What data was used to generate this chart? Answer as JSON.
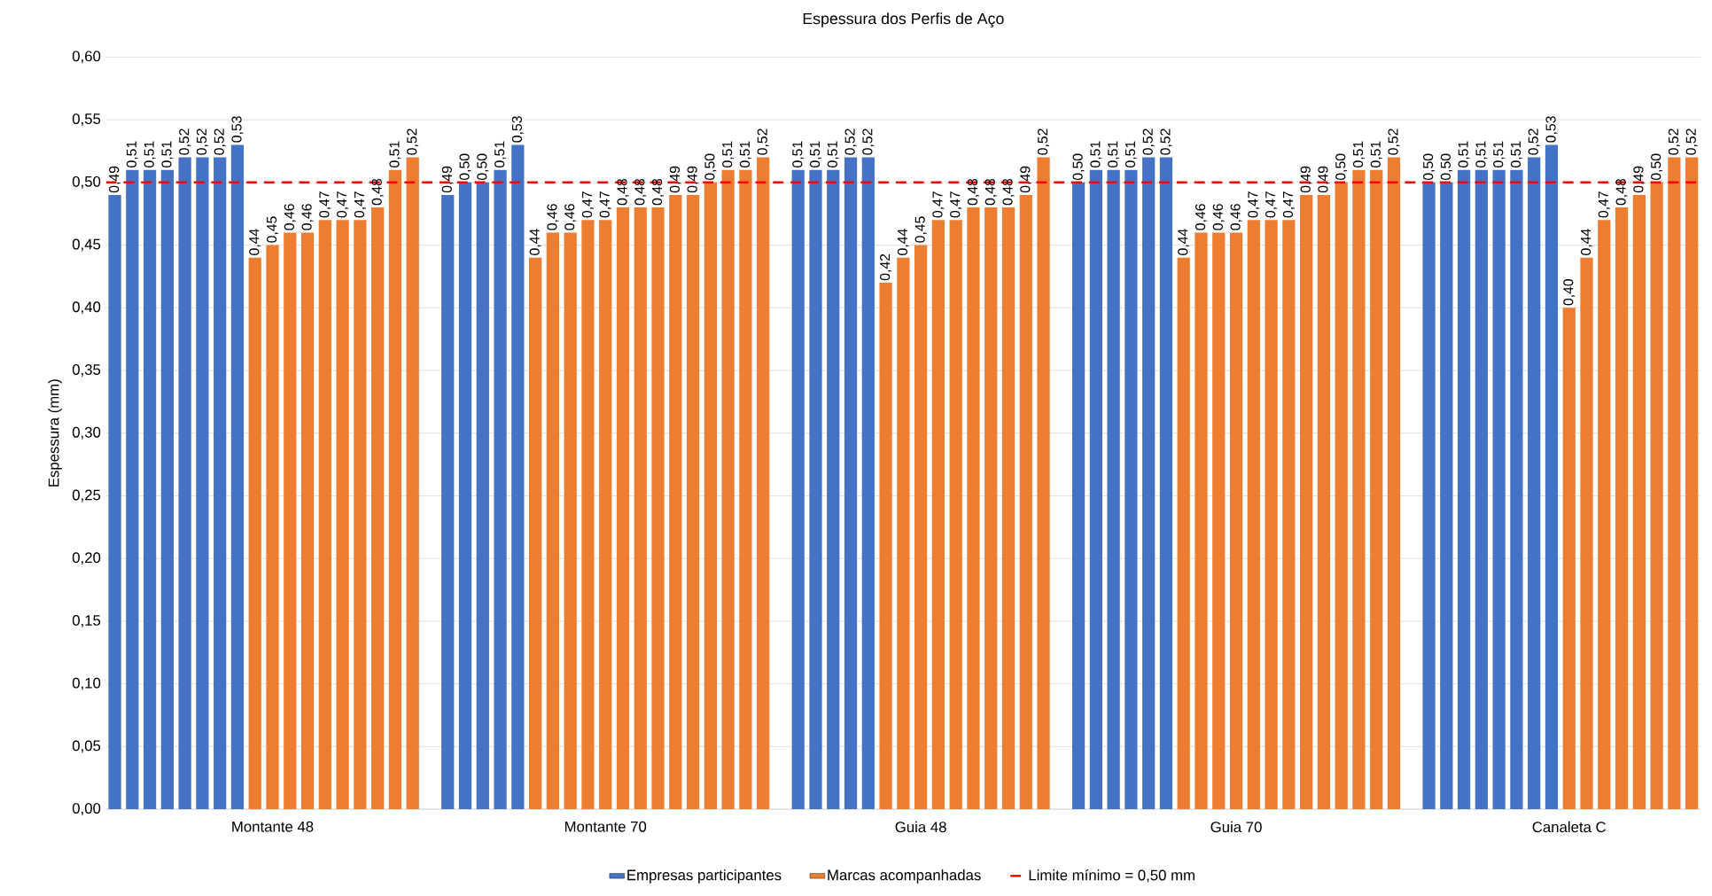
{
  "chart_data": {
    "type": "bar",
    "title": "Espessura dos Perfis de Aço",
    "ylabel": "Espessura (mm)",
    "categories": [
      null,
      null,
      null,
      null,
      null,
      null,
      null,
      null,
      null,
      "Montante 48",
      null,
      null,
      null,
      null,
      null,
      null,
      null,
      null,
      null,
      null,
      null,
      null,
      null,
      null,
      null,
      null,
      null,
      null,
      "Montante 70",
      null,
      null,
      null,
      null,
      null,
      null,
      null,
      null,
      null,
      null,
      null,
      null,
      null,
      null,
      null,
      null,
      null,
      "Guia 48",
      null,
      null,
      null,
      null,
      null,
      null,
      null,
      null,
      null,
      null,
      null,
      null,
      null,
      null,
      null,
      null,
      null,
      "Guia 70",
      null,
      null,
      null,
      null,
      null,
      null,
      null,
      null,
      null,
      null,
      null,
      null,
      null,
      null,
      null,
      null,
      null,
      null,
      "Canaleta C",
      null,
      null,
      null,
      null,
      null,
      null,
      null
    ],
    "series": [
      {
        "name": "Empresas participantes",
        "color": "#4472c4",
        "values": [
          0.49,
          0.51,
          0.51,
          0.51,
          0.52,
          0.52,
          0.52,
          0.53,
          null,
          null,
          null,
          null,
          null,
          null,
          null,
          null,
          null,
          null,
          null,
          0.49,
          0.5,
          0.5,
          0.51,
          0.53,
          null,
          null,
          null,
          null,
          null,
          null,
          null,
          null,
          null,
          null,
          null,
          null,
          null,
          null,
          null,
          0.51,
          0.51,
          0.51,
          0.52,
          0.52,
          null,
          null,
          null,
          null,
          null,
          null,
          null,
          null,
          null,
          null,
          null,
          0.5,
          0.51,
          0.51,
          0.51,
          0.52,
          0.52,
          null,
          null,
          null,
          null,
          null,
          null,
          null,
          null,
          null,
          null,
          null,
          null,
          null,
          null,
          0.5,
          0.5,
          0.51,
          0.51,
          0.51,
          0.51,
          0.52,
          0.53,
          null,
          null,
          null,
          null,
          null,
          null,
          null,
          null
        ],
        "value_labels": [
          "0,49",
          "0,51",
          "0,51",
          "0,51",
          "0,52",
          "0,52",
          "0,52",
          "0,53",
          null,
          null,
          null,
          null,
          null,
          null,
          null,
          null,
          null,
          null,
          null,
          "0,49",
          "0,50",
          "0,50",
          "0,51",
          "0,53",
          null,
          null,
          null,
          null,
          null,
          null,
          null,
          null,
          null,
          null,
          null,
          null,
          null,
          null,
          null,
          "0,51",
          "0,51",
          "0,51",
          "0,52",
          "0,52",
          null,
          null,
          null,
          null,
          null,
          null,
          null,
          null,
          null,
          null,
          null,
          "0,50",
          "0,51",
          "0,51",
          "0,51",
          "0,52",
          "0,52",
          null,
          null,
          null,
          null,
          null,
          null,
          null,
          null,
          null,
          null,
          null,
          null,
          null,
          null,
          "0,50",
          "0,50",
          "0,51",
          "0,51",
          "0,51",
          "0,51",
          "0,52",
          "0,53",
          null,
          null,
          null,
          null,
          null,
          null,
          null,
          null
        ]
      },
      {
        "name": "Marcas acompanhadas",
        "color": "#ed7d31",
        "values": [
          null,
          null,
          null,
          null,
          null,
          null,
          null,
          null,
          0.44,
          0.45,
          0.46,
          0.46,
          0.47,
          0.47,
          0.47,
          0.48,
          0.51,
          0.52,
          null,
          null,
          null,
          null,
          null,
          null,
          0.44,
          0.46,
          0.46,
          0.47,
          0.47,
          0.48,
          0.48,
          0.48,
          0.49,
          0.49,
          0.5,
          0.51,
          0.51,
          0.52,
          null,
          null,
          null,
          null,
          null,
          null,
          0.42,
          0.44,
          0.45,
          0.47,
          0.47,
          0.48,
          0.48,
          0.48,
          0.49,
          0.52,
          null,
          null,
          null,
          null,
          null,
          null,
          null,
          0.44,
          0.46,
          0.46,
          0.46,
          0.47,
          0.47,
          0.47,
          0.49,
          0.49,
          0.5,
          0.51,
          0.51,
          0.52,
          null,
          null,
          null,
          null,
          null,
          null,
          null,
          null,
          null,
          0.4,
          0.44,
          0.47,
          0.48,
          0.49,
          0.5,
          0.52,
          0.52
        ],
        "value_labels": [
          null,
          null,
          null,
          null,
          null,
          null,
          null,
          null,
          "0,44",
          "0,45",
          "0,46",
          "0,46",
          "0,47",
          "0,47",
          "0,47",
          "0,48",
          "0,51",
          "0,52",
          null,
          null,
          null,
          null,
          null,
          null,
          "0,44",
          "0,46",
          "0,46",
          "0,47",
          "0,47",
          "0,48",
          "0,48",
          "0,48",
          "0,49",
          "0,49",
          "0,50",
          "0,51",
          "0,51",
          "0,52",
          null,
          null,
          null,
          null,
          null,
          null,
          "0,42",
          "0,44",
          "0,45",
          "0,47",
          "0,47",
          "0,48",
          "0,48",
          "0,48",
          "0,49",
          "0,52",
          null,
          null,
          null,
          null,
          null,
          null,
          null,
          "0,44",
          "0,46",
          "0,46",
          "0,46",
          "0,47",
          "0,47",
          "0,47",
          "0,49",
          "0,49",
          "0,50",
          "0,51",
          "0,51",
          "0,52",
          null,
          null,
          null,
          null,
          null,
          null,
          null,
          null,
          null,
          "0,40",
          "0,44",
          "0,47",
          "0,48",
          "0,49",
          "0,50",
          "0,52",
          "0,52"
        ]
      }
    ],
    "ylim": [
      0,
      0.6
    ],
    "yticks": [
      {
        "value": 0,
        "label": "0,00"
      },
      {
        "value": 0.05,
        "label": "0,05"
      },
      {
        "value": 0.1,
        "label": "0,10"
      },
      {
        "value": 0.15,
        "label": "0,15"
      },
      {
        "value": 0.2,
        "label": "0,20"
      },
      {
        "value": 0.25,
        "label": "0,25"
      },
      {
        "value": 0.3,
        "label": "0,30"
      },
      {
        "value": 0.35,
        "label": "0,35"
      },
      {
        "value": 0.4,
        "label": "0,40"
      },
      {
        "value": 0.45,
        "label": "0,45"
      },
      {
        "value": 0.5,
        "label": "0,50"
      },
      {
        "value": 0.55,
        "label": "0,55"
      },
      {
        "value": 0.6,
        "label": "0,60"
      }
    ],
    "ref_lines": [
      {
        "axis": "y",
        "value": 0.5,
        "label": "Limite mínimo = 0,50 mm",
        "color": "#ff0000",
        "line_style": "dashed"
      }
    ],
    "grid": "y",
    "legend": "bottom"
  }
}
